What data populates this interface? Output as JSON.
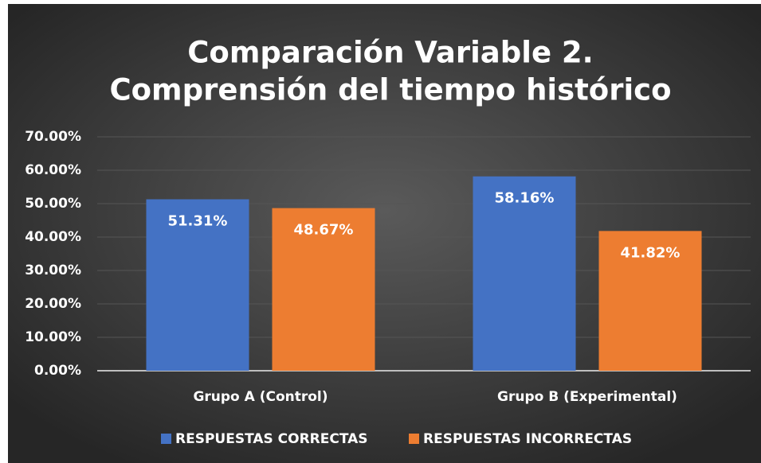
{
  "chart_data": {
    "type": "bar",
    "title": [
      "Comparación Variable 2.",
      "Comprensión del tiempo histórico"
    ],
    "categories": [
      "Grupo A (Control)",
      "Grupo B (Experimental)"
    ],
    "series": [
      {
        "name": "RESPUESTAS CORRECTAS",
        "color": "#4472c4",
        "values": [
          51.31,
          58.16
        ],
        "value_labels": [
          "51.31%",
          "58.16%"
        ]
      },
      {
        "name": "RESPUESTAS INCORRECTAS",
        "color": "#ed7d31",
        "values": [
          48.67,
          41.82
        ],
        "value_labels": [
          "48.67%",
          "41.82%"
        ]
      }
    ],
    "ylim": [
      0,
      70
    ],
    "yticks": [
      {
        "value": 0,
        "label": "0.00%"
      },
      {
        "value": 10,
        "label": "10.00%"
      },
      {
        "value": 20,
        "label": "20.00%"
      },
      {
        "value": 30,
        "label": "30.00%"
      },
      {
        "value": 40,
        "label": "40.00%"
      },
      {
        "value": 50,
        "label": "50.00%"
      },
      {
        "value": 60,
        "label": "60.00%"
      },
      {
        "value": 70,
        "label": "70.00%"
      }
    ],
    "grid": true,
    "legend": "bottom"
  }
}
